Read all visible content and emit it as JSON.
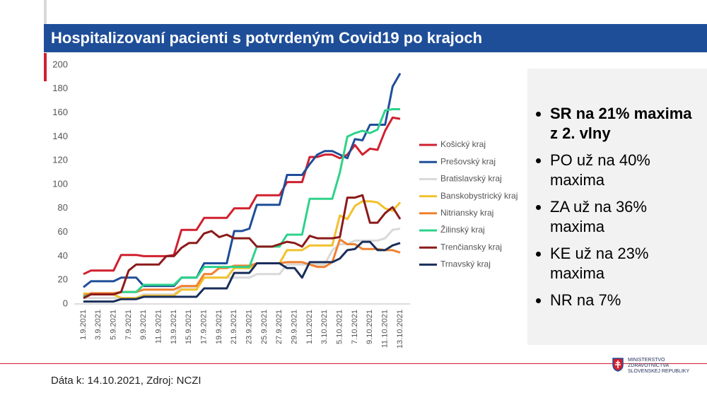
{
  "header": {
    "title": "Hospitalizovaní pacienti s potvrdeným Covid19 po krajoch"
  },
  "chart_data": {
    "type": "line",
    "categories": [
      "1.9.2021",
      null,
      "3.9.2021",
      null,
      "5.9.2021",
      null,
      "7.9.2021",
      null,
      "9.9.2021",
      null,
      "11.9.2021",
      null,
      "13.9.2021",
      null,
      "15.9.2021",
      null,
      "17.9.2021",
      null,
      "19.9.2021",
      null,
      "21.9.2021",
      null,
      "23.9.2021",
      null,
      "25.9.2021",
      null,
      "27.9.2021",
      null,
      "29.9.2021",
      null,
      "1.10.2021",
      null,
      "3.10.2021",
      null,
      "5.10.2021",
      null,
      "7.10.2021",
      null,
      "9.10.2021",
      null,
      "11.10.2021",
      null,
      "13.10.2021"
    ],
    "ylim": [
      0,
      200
    ],
    "yticks": [
      0,
      20,
      40,
      60,
      80,
      100,
      120,
      140,
      160,
      180,
      200
    ],
    "grid": false,
    "legend": "right",
    "series": [
      {
        "name": "Košický kraj",
        "color": "#d0202f",
        "values": [
          25,
          28,
          28,
          28,
          28,
          41,
          41,
          41,
          40,
          40,
          40,
          40,
          41,
          62,
          62,
          62,
          72,
          72,
          72,
          72,
          80,
          80,
          80,
          91,
          91,
          91,
          91,
          102,
          102,
          102,
          123,
          123,
          125,
          125,
          122,
          125,
          133,
          125,
          130,
          129,
          145,
          156,
          155
        ]
      },
      {
        "name": "Prešovský kraj",
        "color": "#1f4e99",
        "values": [
          14,
          19,
          19,
          19,
          19,
          22,
          22,
          22,
          15,
          15,
          15,
          15,
          15,
          22,
          22,
          22,
          34,
          34,
          34,
          34,
          61,
          61,
          63,
          83,
          83,
          83,
          83,
          108,
          108,
          108,
          117,
          125,
          128,
          128,
          125,
          122,
          138,
          137,
          150,
          150,
          150,
          182,
          193
        ]
      },
      {
        "name": "Bratislavský kraj",
        "color": "#d9d9d9",
        "values": [
          5,
          5,
          5,
          5,
          5,
          5,
          5,
          5,
          8,
          8,
          8,
          8,
          8,
          14,
          14,
          14,
          22,
          22,
          22,
          22,
          22,
          22,
          22,
          25,
          25,
          25,
          25,
          33,
          33,
          33,
          33,
          33,
          33,
          45,
          50,
          50,
          53,
          53,
          53,
          53,
          55,
          62,
          63
        ]
      },
      {
        "name": "Banskobystrický kraj",
        "color": "#f2c12e",
        "values": [
          9,
          8,
          8,
          8,
          8,
          5,
          5,
          5,
          7,
          7,
          7,
          7,
          7,
          12,
          12,
          12,
          22,
          22,
          22,
          22,
          30,
          30,
          30,
          34,
          34,
          34,
          34,
          45,
          45,
          45,
          49,
          49,
          49,
          49,
          74,
          71,
          82,
          86,
          86,
          85,
          80,
          78,
          85
        ]
      },
      {
        "name": "Nitriansky kraj",
        "color": "#f08030",
        "values": [
          7,
          9,
          9,
          9,
          9,
          10,
          10,
          10,
          12,
          12,
          12,
          12,
          12,
          15,
          15,
          15,
          25,
          25,
          30,
          30,
          32,
          32,
          32,
          34,
          34,
          34,
          34,
          35,
          35,
          35,
          33,
          31,
          31,
          35,
          54,
          50,
          50,
          46,
          46,
          46,
          45,
          45,
          43
        ]
      },
      {
        "name": "Žilinský kraj",
        "color": "#2ed28a",
        "values": [
          6,
          8,
          8,
          8,
          8,
          10,
          10,
          10,
          16,
          16,
          16,
          16,
          16,
          22,
          22,
          22,
          31,
          31,
          31,
          31,
          31,
          31,
          31,
          48,
          48,
          48,
          48,
          58,
          58,
          58,
          88,
          88,
          88,
          88,
          110,
          140,
          143,
          145,
          143,
          146,
          162,
          163,
          163
        ]
      },
      {
        "name": "Trenčiansky kraj",
        "color": "#8b1a1a",
        "values": [
          5,
          8,
          8,
          8,
          8,
          10,
          28,
          33,
          33,
          33,
          33,
          40,
          40,
          47,
          51,
          51,
          59,
          61,
          56,
          58,
          55,
          55,
          55,
          48,
          48,
          48,
          50,
          52,
          51,
          48,
          57,
          55,
          55,
          55,
          56,
          89,
          89,
          91,
          68,
          68,
          76,
          81,
          71
        ]
      },
      {
        "name": "Trnavský kraj",
        "color": "#1a2e5a",
        "values": [
          2,
          2,
          2,
          2,
          2,
          4,
          4,
          4,
          6,
          6,
          6,
          6,
          6,
          6,
          6,
          6,
          13,
          13,
          13,
          13,
          26,
          26,
          26,
          34,
          34,
          34,
          34,
          30,
          30,
          22,
          35,
          35,
          35,
          35,
          38,
          45,
          46,
          52,
          52,
          45,
          45,
          49,
          51
        ]
      }
    ]
  },
  "bullets": [
    "SR na 21% maxima z 2. vlny",
    "PO už na 40% maxima",
    "ZA už na 36% maxima",
    "KE už na 23% maxima",
    "NR na 7%"
  ],
  "footer": {
    "source": "Dáta k: 14.10.2021, Zdroj: NCZI"
  },
  "logo": {
    "lines": [
      "MINISTERSTVO",
      "ZDRAVOTNÍCTVA",
      "SLOVENSKEJ REPUBLIKY"
    ]
  }
}
